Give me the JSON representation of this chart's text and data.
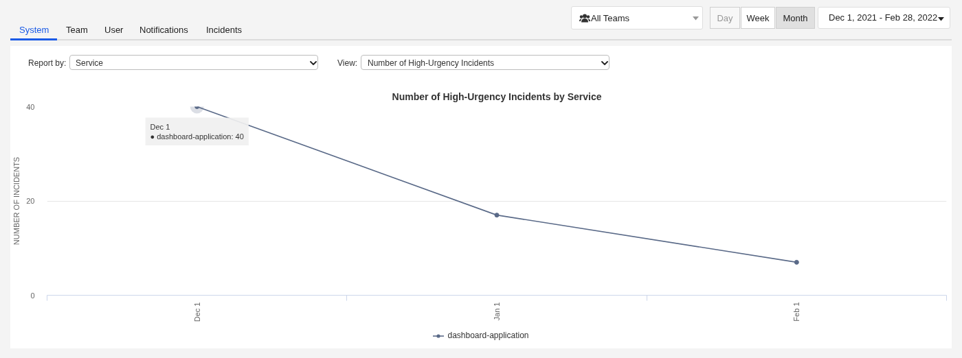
{
  "chart_data": {
    "type": "line",
    "title": "Number of High-Urgency Incidents by Service",
    "ylabel": "NUMBER OF INCIDENTS",
    "categories": [
      "Dec 1",
      "Jan 1",
      "Feb 1"
    ],
    "series": [
      {
        "name": "dashboard-application",
        "color": "#5a6a88",
        "values": [
          40,
          17,
          7
        ]
      }
    ],
    "ylim": [
      0,
      40
    ],
    "yticks": [
      0,
      20,
      40
    ],
    "grid": "y",
    "legend": "bottom",
    "marker": "circle",
    "line_style": "solid",
    "annotations": [
      {
        "text": "Dec 1\n● dashboard-application: 40",
        "x": "Dec 1",
        "y": 40
      },
      "System",
      "Team",
      "User",
      "Notifications",
      "Incidents",
      "All Teams",
      "Day",
      "Week",
      "Month",
      "Dec 1, 2021 - Feb 28, 2022",
      "Report by:",
      "Service",
      "View:",
      "Number of High-Urgency Incidents"
    ]
  }
}
